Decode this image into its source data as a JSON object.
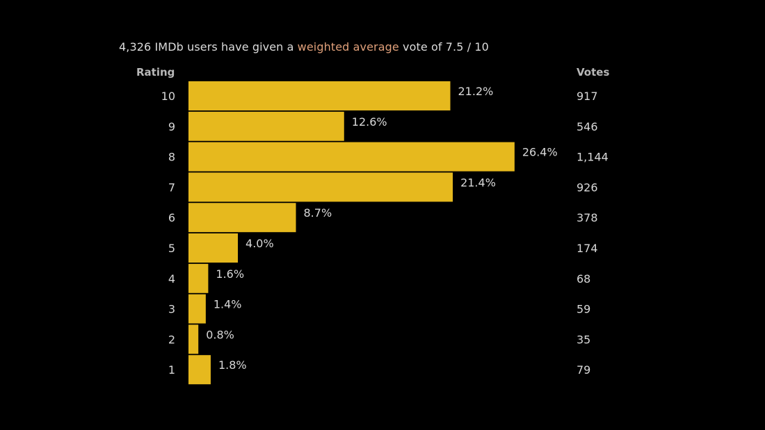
{
  "summary": {
    "prefix": "4,326 IMDb users have given a ",
    "link": "weighted average",
    "suffix": " vote of 7.5 / 10"
  },
  "colors": {
    "background": "#000000",
    "bar": "#e6b91e",
    "link": "#e0a07a",
    "text": "#d8d8d8",
    "header": "#b8b8b8"
  },
  "chart_data": {
    "type": "bar",
    "orientation": "horizontal",
    "columns": {
      "rating": "Rating",
      "votes": "Votes"
    },
    "categories": [
      "10",
      "9",
      "8",
      "7",
      "6",
      "5",
      "4",
      "3",
      "2",
      "1"
    ],
    "percent_labels": [
      "21.2%",
      "12.6%",
      "26.4%",
      "21.4%",
      "8.7%",
      "4.0%",
      "1.6%",
      "1.4%",
      "0.8%",
      "1.8%"
    ],
    "percent_values": [
      21.2,
      12.6,
      26.4,
      21.4,
      8.7,
      4.0,
      1.6,
      1.4,
      0.8,
      1.8
    ],
    "vote_labels": [
      "917",
      "546",
      "1,144",
      "926",
      "378",
      "174",
      "68",
      "59",
      "35",
      "79"
    ],
    "votes": [
      917,
      546,
      1144,
      926,
      378,
      174,
      68,
      59,
      35,
      79
    ],
    "grid": false,
    "legend": "none"
  }
}
